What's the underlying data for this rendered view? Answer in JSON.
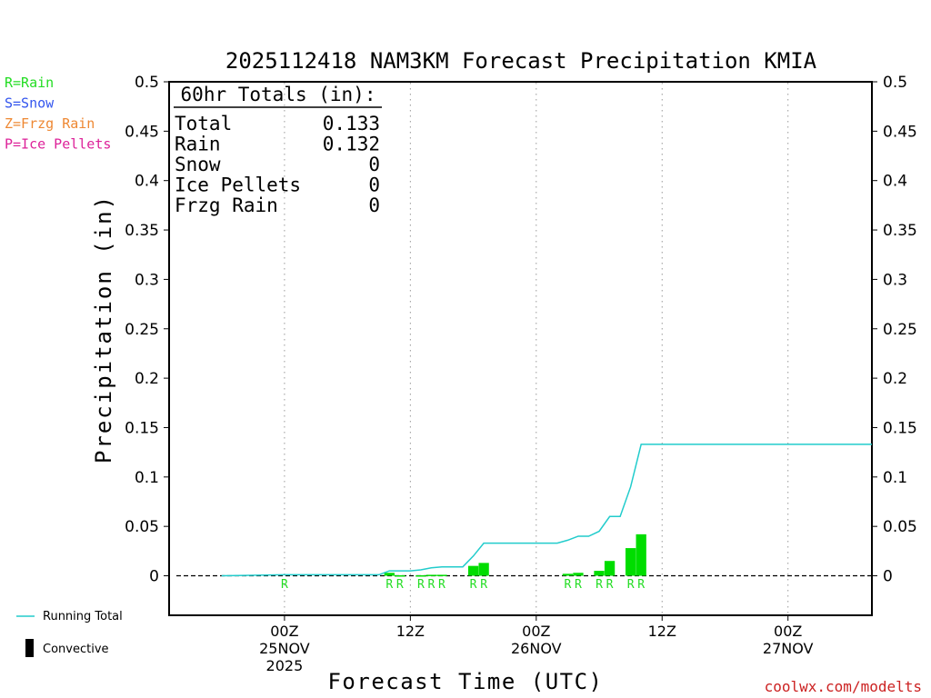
{
  "chart_data": {
    "type": "bar",
    "title": "2025112418 NAM3KM Forecast Precipitation KMIA",
    "xlabel": "Forecast Time (UTC)",
    "ylabel": "Precipitation (in)",
    "ylim": [
      -0.04,
      0.5
    ],
    "y_ticks": [
      0,
      0.05,
      0.1,
      0.15,
      0.2,
      0.25,
      0.3,
      0.35,
      0.4,
      0.45,
      0.5
    ],
    "y_tick_labels": [
      "0",
      "0.05",
      "0.1",
      "0.15",
      "0.2",
      "0.25",
      "0.3",
      "0.35",
      "0.4",
      "0.45",
      "0.5"
    ],
    "x_unit": "forecast hour",
    "xlim": [
      -5,
      62
    ],
    "x_ticks": [
      {
        "hour": 6,
        "lines": [
          "00Z",
          "25NOV",
          "2025"
        ]
      },
      {
        "hour": 18,
        "lines": [
          "12Z"
        ]
      },
      {
        "hour": 30,
        "lines": [
          "00Z",
          "26NOV"
        ]
      },
      {
        "hour": 42,
        "lines": [
          "12Z"
        ]
      },
      {
        "hour": 54,
        "lines": [
          "00Z",
          "27NOV"
        ]
      }
    ],
    "precip_type_legend": [
      {
        "label": "R=Rain",
        "color": "#22dd22"
      },
      {
        "label": "S=Snow",
        "color": "#3355ee"
      },
      {
        "label": "Z=Frzg Rain",
        "color": "#ee8833"
      },
      {
        "label": "P=Ice Pellets",
        "color": "#dd2299"
      }
    ],
    "bar_color": "#00dd00",
    "hourly_precip": [
      {
        "hour": 16,
        "value": 0.003,
        "type": "R"
      },
      {
        "hour": 17,
        "value": 0.0005,
        "type": "R"
      },
      {
        "hour": 19,
        "value": 0.0005,
        "type": "R"
      },
      {
        "hour": 20,
        "value": 0.001,
        "type": "R"
      },
      {
        "hour": 21,
        "value": 0.001,
        "type": "R"
      },
      {
        "hour": 24,
        "value": 0.01,
        "type": "R"
      },
      {
        "hour": 25,
        "value": 0.013,
        "type": "R"
      },
      {
        "hour": 33,
        "value": 0.002,
        "type": "R"
      },
      {
        "hour": 34,
        "value": 0.003,
        "type": "R"
      },
      {
        "hour": 36,
        "value": 0.005,
        "type": "R"
      },
      {
        "hour": 37,
        "value": 0.015,
        "type": "R"
      },
      {
        "hour": 39,
        "value": 0.028,
        "type": "R"
      },
      {
        "hour": 40,
        "value": 0.042,
        "type": "R"
      }
    ],
    "precip_type_labels": [
      {
        "hour": 6,
        "text": "R"
      },
      {
        "hour": 16,
        "text": "R"
      },
      {
        "hour": 17,
        "text": "R"
      },
      {
        "hour": 19,
        "text": "R"
      },
      {
        "hour": 20,
        "text": "R"
      },
      {
        "hour": 21,
        "text": "R"
      },
      {
        "hour": 24,
        "text": "R"
      },
      {
        "hour": 25,
        "text": "R"
      },
      {
        "hour": 33,
        "text": "R"
      },
      {
        "hour": 34,
        "text": "R"
      },
      {
        "hour": 36,
        "text": "R"
      },
      {
        "hour": 37,
        "text": "R"
      },
      {
        "hour": 39,
        "text": "R"
      },
      {
        "hour": 40,
        "text": "R"
      }
    ],
    "running_total": {
      "name": "Running Total",
      "color": "#22cccc",
      "x": [
        0,
        6,
        15,
        16,
        17,
        18,
        19,
        20,
        21,
        22,
        23,
        24,
        25,
        26,
        32,
        33,
        34,
        35,
        36,
        37,
        38,
        39,
        40,
        41,
        60,
        62
      ],
      "y": [
        0,
        0.001,
        0.001,
        0.005,
        0.005,
        0.005,
        0.006,
        0.008,
        0.009,
        0.009,
        0.009,
        0.02,
        0.033,
        0.033,
        0.033,
        0.036,
        0.04,
        0.04,
        0.045,
        0.06,
        0.06,
        0.09,
        0.133,
        0.133,
        0.133,
        0.133
      ]
    },
    "totals_box": {
      "header": "60hr Totals (in):",
      "rows": [
        {
          "label": "Total",
          "value": "0.133"
        },
        {
          "label": "Rain",
          "value": "0.132"
        },
        {
          "label": "Snow",
          "value": "0"
        },
        {
          "label": "Ice Pellets",
          "value": "0"
        },
        {
          "label": "Frzg Rain",
          "value": "0"
        }
      ]
    },
    "bottom_legend": [
      {
        "label": "Running Total",
        "kind": "line",
        "color": "#22cccc"
      },
      {
        "label": "Convective",
        "kind": "bar",
        "color": "#000000"
      }
    ],
    "credit": "coolwx.com/modelts"
  }
}
